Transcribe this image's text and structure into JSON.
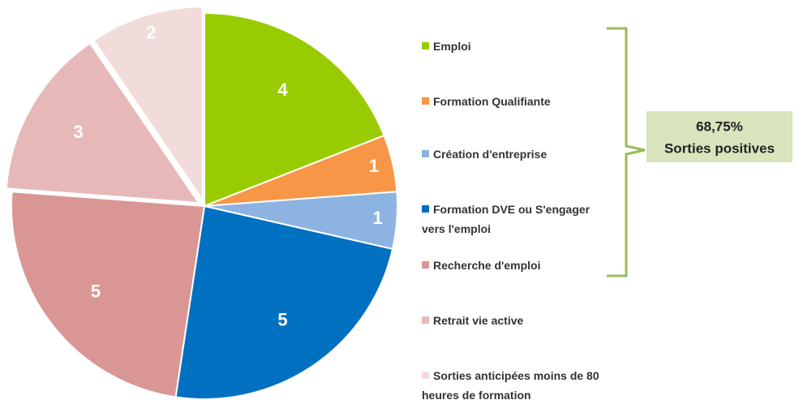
{
  "chart_data": {
    "type": "pie",
    "categories": [
      "Emploi",
      "Formation Qualifiante",
      "Création d'entreprise",
      "Formation DVE ou S'engager\nvers l'emploi",
      "Recherche  d'emploi",
      "Retrait vie active",
      "Sorties anticipées moins de 80\nheures de formation"
    ],
    "values": [
      4,
      1,
      1,
      5,
      5,
      3,
      2
    ],
    "colors": [
      "#99cc00",
      "#f79646",
      "#8db3e2",
      "#0070c0",
      "#d99694",
      "#e6b9b8",
      "#f2dcdb"
    ],
    "annotation": [
      "68,75%",
      "Sorties positives"
    ]
  }
}
